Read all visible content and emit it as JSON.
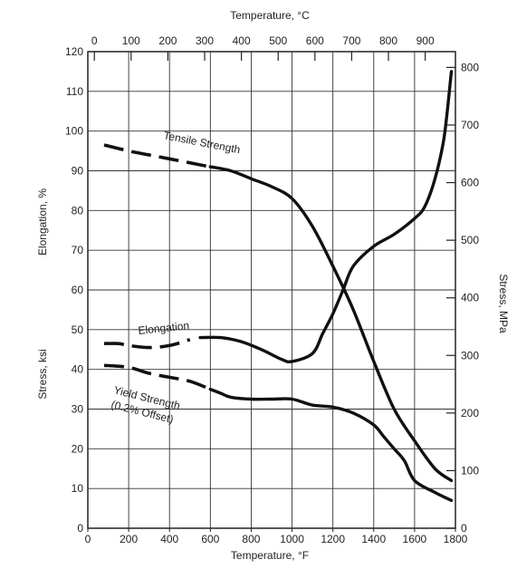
{
  "chart_data": {
    "type": "line",
    "x_unit_label": "Temperature, °F",
    "x_top_label": "Temperature, °C",
    "y_left_upper_label": "Elongation, %",
    "y_left_lower_label": "Stress, ksi",
    "y_right_label": "Stress, MPa",
    "xlim": [
      0,
      1800
    ],
    "ylim": [
      0,
      120
    ],
    "x_ticks": [
      0,
      200,
      400,
      600,
      800,
      1000,
      1200,
      1400,
      1600,
      1800
    ],
    "x_ticks_labels": [
      "0",
      "200",
      "400",
      "600",
      "800",
      "1000",
      "1200",
      "1400",
      "1600",
      "1800"
    ],
    "y_ticks": [
      0,
      10,
      20,
      30,
      40,
      50,
      60,
      70,
      80,
      90,
      100,
      110,
      120
    ],
    "y_ticks_labels": [
      "0",
      "10",
      "20",
      "30",
      "40",
      "50",
      "60",
      "70",
      "80",
      "90",
      "100",
      "110",
      "120"
    ],
    "top_ticks": [
      0,
      100,
      200,
      300,
      400,
      500,
      600,
      700,
      800,
      900
    ],
    "top_ticks_labels": [
      "0",
      "100",
      "200",
      "300",
      "400",
      "500",
      "600",
      "700",
      "800",
      "900"
    ],
    "right_ticks": [
      0,
      100,
      200,
      300,
      400,
      500,
      600,
      700,
      800
    ],
    "right_ticks_labels": [
      "0",
      "100",
      "200",
      "300",
      "400",
      "500",
      "600",
      "700",
      "800"
    ],
    "grid": true,
    "series": [
      {
        "name": "Tensile Strength",
        "dashed_x": [
          80,
          600
        ],
        "x": [
          80,
          200,
          300,
          400,
          500,
          600,
          700,
          800,
          900,
          1000,
          1100,
          1200,
          1300,
          1400,
          1500,
          1600,
          1700,
          1780
        ],
        "y": [
          96.5,
          95,
          94,
          93,
          92,
          91,
          90,
          88,
          86,
          83,
          76,
          66,
          55,
          42,
          30,
          22,
          15,
          12
        ]
      },
      {
        "name": "Elongation",
        "dashed_x": [
          80,
          520
        ],
        "x": [
          80,
          150,
          200,
          300,
          400,
          500,
          550,
          650,
          750,
          850,
          950,
          1000,
          1100,
          1150,
          1200,
          1250,
          1300,
          1400,
          1500,
          1600,
          1650,
          1700,
          1740,
          1760,
          1780
        ],
        "y": [
          46.5,
          46.5,
          46,
          45.5,
          46,
          47.5,
          48,
          48,
          47,
          45,
          42.5,
          42,
          44,
          49,
          54,
          60,
          66,
          71,
          74,
          78,
          81,
          88,
          97,
          105,
          115
        ]
      },
      {
        "name": "Yield Strength (0.2% Offset)",
        "dashed_x": [
          80,
          600
        ],
        "x": [
          80,
          200,
          300,
          400,
          500,
          600,
          650,
          700,
          800,
          900,
          1000,
          1100,
          1200,
          1300,
          1400,
          1450,
          1500,
          1550,
          1600,
          1700,
          1780
        ],
        "y": [
          41,
          40.5,
          39,
          38,
          37,
          35,
          34,
          33,
          32.5,
          32.5,
          32.5,
          31,
          30.5,
          29,
          26,
          23,
          20,
          17,
          12,
          9,
          7
        ]
      }
    ],
    "annotations": {
      "tensile_label": "Tensile Strength",
      "elongation_label": "Elongation",
      "yield_label_line1": "Yield Strength",
      "yield_label_line2": "(0.2% Offset)"
    }
  }
}
